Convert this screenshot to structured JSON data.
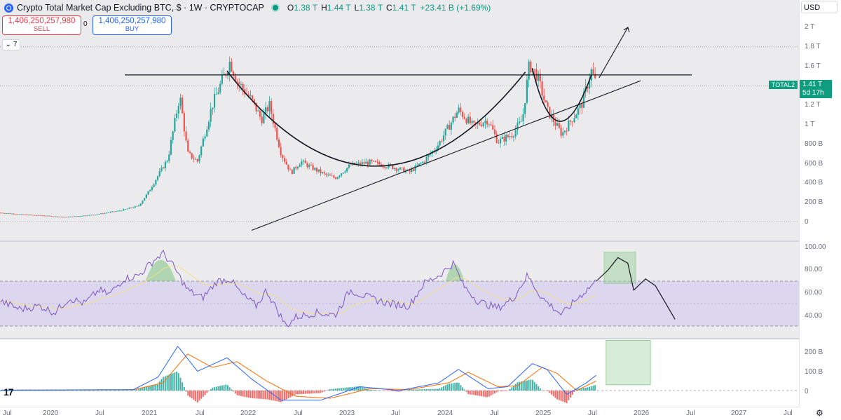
{
  "header": {
    "symbol_title": "Crypto Total Market Cap Excluding BTC, $ · 1W · CRYPTOCAP",
    "ohlc": [
      {
        "k": "O",
        "v": "1.38 T"
      },
      {
        "k": "H",
        "v": "1.44 T"
      },
      {
        "k": "L",
        "v": "1.38 T"
      },
      {
        "k": "C",
        "v": "1.41 T"
      }
    ],
    "change": "+23.41 B (+1.69%)"
  },
  "trade": {
    "sell_price": "1,406,250,257,980",
    "sell_label": "SELL",
    "buy_price": "1,406,250,257,980",
    "buy_label": "BUY",
    "spread": "0"
  },
  "indicators_collapsed_count": "7",
  "currency": "USD",
  "price_scale": {
    "ticks": [
      {
        "label": "2 T",
        "value": 2000
      },
      {
        "label": "1.8 T",
        "value": 1800
      },
      {
        "label": "1.6 T",
        "value": 1600
      },
      {
        "label": "1.2 T",
        "value": 1200
      },
      {
        "label": "1 T",
        "value": 1000
      },
      {
        "label": "800 B",
        "value": 800
      },
      {
        "label": "600 B",
        "value": 600
      },
      {
        "label": "400 B",
        "value": 400
      },
      {
        "label": "200 B",
        "value": 200
      },
      {
        "label": "0",
        "value": 0
      }
    ]
  },
  "last_price": {
    "symbol": "TOTAL2",
    "value": "1.41 T",
    "countdown": "5d 17h"
  },
  "rsi_scale": {
    "ticks": [
      {
        "label": "100.00",
        "value": 100
      },
      {
        "label": "80.00",
        "value": 80
      },
      {
        "label": "60.00",
        "value": 60
      },
      {
        "label": "40.00",
        "value": 40
      }
    ]
  },
  "macd_scale": {
    "ticks": [
      {
        "label": "200 B",
        "value": 200
      },
      {
        "label": "100 B",
        "value": 100
      },
      {
        "label": "0",
        "value": 0
      }
    ]
  },
  "time_axis": {
    "labels": [
      "Jul",
      "2020",
      "Jul",
      "2021",
      "Jul",
      "2022",
      "Jul",
      "2023",
      "Jul",
      "2024",
      "Jul",
      "2025",
      "Jul",
      "2026",
      "Jul",
      "2027",
      "Jul"
    ]
  },
  "colors": {
    "up": "#26a69a",
    "down": "#ef5350",
    "rsi_line": "#7e57c2",
    "rsi_ma": "#f5e08a",
    "macd_line": "#2962ff",
    "signal_line": "#ff6d00",
    "accent": "#0f9d7f"
  },
  "icons": {
    "logo": "tradingview-logo",
    "settings": "gear-icon",
    "symbol": "crypto-logo-icon"
  },
  "chart_data": {
    "type": "candlestick",
    "timeframe": "1W",
    "x_range": [
      "2019-07",
      "2027-07"
    ],
    "price_anchors_billion": [
      {
        "t": 2019.55,
        "v": 90
      },
      {
        "t": 2019.8,
        "v": 70
      },
      {
        "t": 2020.0,
        "v": 60
      },
      {
        "t": 2020.2,
        "v": 45
      },
      {
        "t": 2020.5,
        "v": 70
      },
      {
        "t": 2020.75,
        "v": 110
      },
      {
        "t": 2020.95,
        "v": 160
      },
      {
        "t": 2021.05,
        "v": 300
      },
      {
        "t": 2021.25,
        "v": 650
      },
      {
        "t": 2021.37,
        "v": 1300
      },
      {
        "t": 2021.45,
        "v": 700
      },
      {
        "t": 2021.55,
        "v": 620
      },
      {
        "t": 2021.7,
        "v": 1200
      },
      {
        "t": 2021.88,
        "v": 1650
      },
      {
        "t": 2021.95,
        "v": 1450
      },
      {
        "t": 2022.1,
        "v": 1250
      },
      {
        "t": 2022.2,
        "v": 1050
      },
      {
        "t": 2022.28,
        "v": 1200
      },
      {
        "t": 2022.4,
        "v": 700
      },
      {
        "t": 2022.5,
        "v": 500
      },
      {
        "t": 2022.6,
        "v": 620
      },
      {
        "t": 2022.7,
        "v": 560
      },
      {
        "t": 2022.85,
        "v": 480
      },
      {
        "t": 2022.95,
        "v": 450
      },
      {
        "t": 2023.1,
        "v": 580
      },
      {
        "t": 2023.3,
        "v": 610
      },
      {
        "t": 2023.5,
        "v": 570
      },
      {
        "t": 2023.7,
        "v": 510
      },
      {
        "t": 2023.85,
        "v": 620
      },
      {
        "t": 2024.0,
        "v": 800
      },
      {
        "t": 2024.2,
        "v": 1150
      },
      {
        "t": 2024.35,
        "v": 980
      },
      {
        "t": 2024.5,
        "v": 1050
      },
      {
        "t": 2024.6,
        "v": 820
      },
      {
        "t": 2024.75,
        "v": 900
      },
      {
        "t": 2024.85,
        "v": 1050
      },
      {
        "t": 2024.92,
        "v": 1620
      },
      {
        "t": 2025.0,
        "v": 1500
      },
      {
        "t": 2025.1,
        "v": 1150
      },
      {
        "t": 2025.25,
        "v": 900
      },
      {
        "t": 2025.35,
        "v": 1050
      },
      {
        "t": 2025.45,
        "v": 1200
      },
      {
        "t": 2025.55,
        "v": 1550
      },
      {
        "t": 2025.6,
        "v": 1410
      }
    ],
    "drawings": {
      "resistance_level_billion": 1510,
      "support_trendline": [
        {
          "t": 2022.1,
          "v": -90
        },
        {
          "t": 2026.05,
          "v": 1450
        }
      ],
      "rounding_bottom_arc": [
        {
          "t": 2021.85,
          "v": 1550
        },
        {
          "t": 2023.35,
          "v": 500
        },
        {
          "t": 2024.88,
          "v": 1540
        }
      ],
      "second_arc": [
        {
          "t": 2024.95,
          "v": 1580
        },
        {
          "t": 2025.2,
          "v": 990
        },
        {
          "t": 2025.55,
          "v": 1510
        }
      ],
      "projection_arrow": [
        {
          "t": 2025.6,
          "v": 1480
        },
        {
          "t": 2025.85,
          "v": 2000
        }
      ]
    },
    "rsi": {
      "upper_band": 70,
      "lower_band": 30,
      "middle": 50,
      "values": [
        {
          "t": 2019.55,
          "v": 52
        },
        {
          "t": 2019.75,
          "v": 45
        },
        {
          "t": 2019.95,
          "v": 48
        },
        {
          "t": 2020.1,
          "v": 42
        },
        {
          "t": 2020.25,
          "v": 55
        },
        {
          "t": 2020.4,
          "v": 50
        },
        {
          "t": 2020.55,
          "v": 62
        },
        {
          "t": 2020.65,
          "v": 58
        },
        {
          "t": 2020.8,
          "v": 72
        },
        {
          "t": 2020.95,
          "v": 75
        },
        {
          "t": 2021.1,
          "v": 88
        },
        {
          "t": 2021.2,
          "v": 95
        },
        {
          "t": 2021.3,
          "v": 84
        },
        {
          "t": 2021.45,
          "v": 62
        },
        {
          "t": 2021.6,
          "v": 55
        },
        {
          "t": 2021.75,
          "v": 70
        },
        {
          "t": 2021.88,
          "v": 72
        },
        {
          "t": 2022.0,
          "v": 58
        },
        {
          "t": 2022.15,
          "v": 48
        },
        {
          "t": 2022.25,
          "v": 62
        },
        {
          "t": 2022.45,
          "v": 30
        },
        {
          "t": 2022.55,
          "v": 38
        },
        {
          "t": 2022.75,
          "v": 42
        },
        {
          "t": 2022.95,
          "v": 40
        },
        {
          "t": 2023.1,
          "v": 62
        },
        {
          "t": 2023.3,
          "v": 55
        },
        {
          "t": 2023.5,
          "v": 50
        },
        {
          "t": 2023.7,
          "v": 48
        },
        {
          "t": 2023.85,
          "v": 68
        },
        {
          "t": 2024.0,
          "v": 75
        },
        {
          "t": 2024.15,
          "v": 86
        },
        {
          "t": 2024.25,
          "v": 66
        },
        {
          "t": 2024.4,
          "v": 52
        },
        {
          "t": 2024.6,
          "v": 46
        },
        {
          "t": 2024.75,
          "v": 54
        },
        {
          "t": 2024.9,
          "v": 75
        },
        {
          "t": 2025.05,
          "v": 55
        },
        {
          "t": 2025.25,
          "v": 40
        },
        {
          "t": 2025.4,
          "v": 54
        },
        {
          "t": 2025.6,
          "v": 70
        }
      ],
      "projection": [
        {
          "t": 2025.6,
          "v": 70
        },
        {
          "t": 2025.72,
          "v": 80
        },
        {
          "t": 2025.82,
          "v": 91
        },
        {
          "t": 2025.92,
          "v": 86
        },
        {
          "t": 2025.98,
          "v": 62
        },
        {
          "t": 2026.1,
          "v": 72
        },
        {
          "t": 2026.2,
          "v": 66
        },
        {
          "t": 2026.32,
          "v": 48
        },
        {
          "t": 2026.4,
          "v": 36
        }
      ],
      "target_box": {
        "t1": 2025.68,
        "t2": 2026.0,
        "v1": 68,
        "v2": 96
      }
    },
    "macd": {
      "macd_line": [
        {
          "t": 2019.55,
          "v": 2
        },
        {
          "t": 2020.9,
          "v": 5
        },
        {
          "t": 2021.15,
          "v": 70
        },
        {
          "t": 2021.35,
          "v": 230
        },
        {
          "t": 2021.55,
          "v": 100
        },
        {
          "t": 2021.85,
          "v": 170
        },
        {
          "t": 2022.1,
          "v": 60
        },
        {
          "t": 2022.4,
          "v": -50
        },
        {
          "t": 2022.8,
          "v": -50
        },
        {
          "t": 2023.2,
          "v": 20
        },
        {
          "t": 2023.6,
          "v": 0
        },
        {
          "t": 2024.0,
          "v": 40
        },
        {
          "t": 2024.2,
          "v": 110
        },
        {
          "t": 2024.5,
          "v": 10
        },
        {
          "t": 2024.7,
          "v": 20
        },
        {
          "t": 2024.95,
          "v": 140
        },
        {
          "t": 2025.1,
          "v": 110
        },
        {
          "t": 2025.3,
          "v": -20
        },
        {
          "t": 2025.5,
          "v": 40
        },
        {
          "t": 2025.6,
          "v": 80
        }
      ],
      "signal_line": [
        {
          "t": 2019.55,
          "v": 2
        },
        {
          "t": 2020.9,
          "v": 4
        },
        {
          "t": 2021.2,
          "v": 40
        },
        {
          "t": 2021.45,
          "v": 190
        },
        {
          "t": 2021.7,
          "v": 120
        },
        {
          "t": 2021.95,
          "v": 150
        },
        {
          "t": 2022.25,
          "v": 50
        },
        {
          "t": 2022.55,
          "v": -30
        },
        {
          "t": 2022.9,
          "v": -40
        },
        {
          "t": 2023.3,
          "v": 10
        },
        {
          "t": 2023.7,
          "v": 5
        },
        {
          "t": 2024.1,
          "v": 40
        },
        {
          "t": 2024.3,
          "v": 95
        },
        {
          "t": 2024.6,
          "v": 20
        },
        {
          "t": 2024.8,
          "v": 25
        },
        {
          "t": 2025.05,
          "v": 120
        },
        {
          "t": 2025.2,
          "v": 90
        },
        {
          "t": 2025.4,
          "v": 0
        },
        {
          "t": 2025.6,
          "v": 50
        }
      ],
      "target_box": {
        "t1": 2025.7,
        "t2": 2026.15,
        "v1": 30,
        "v2": 260
      }
    }
  }
}
